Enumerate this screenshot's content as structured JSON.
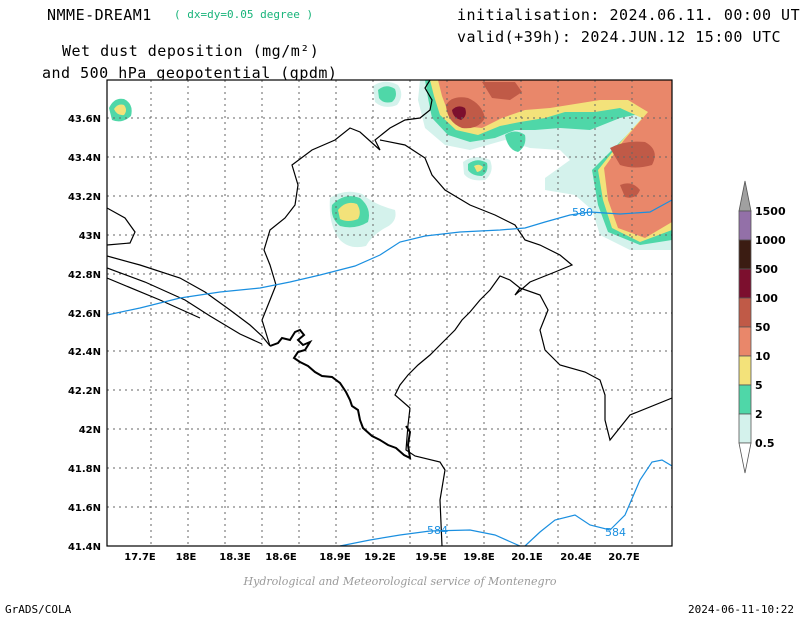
{
  "header": {
    "model": "NMME-DREAM1",
    "resolution": "( dx=dy=0.05 degree )",
    "title_line1": "Wet dust deposition (mg/m²)",
    "title_line2": "and 500 hPa geopotential (gpdm)",
    "init": "initialisation: 2024.06.11. 00:00 UTC",
    "valid": "valid(+39h): 2024.JUN.12 15:00 UTC"
  },
  "map": {
    "lat_labels": [
      "43.6N",
      "43.4N",
      "43.2N",
      "43N",
      "42.8N",
      "42.6N",
      "42.4N",
      "42.2N",
      "42N",
      "41.8N",
      "41.6N",
      "41.4N"
    ],
    "lon_labels": [
      "17.7E",
      "18E",
      "18.3E",
      "18.6E",
      "18.9E",
      "19.2E",
      "19.5E",
      "19.8E",
      "20.1E",
      "20.4E",
      "20.7E"
    ],
    "contours": [
      {
        "value": "580"
      },
      {
        "value": "584"
      },
      {
        "value": "584"
      }
    ],
    "colors": {
      "c0_5": "#d4f2ec",
      "c2": "#4fd7a8",
      "c5": "#f3e27a",
      "c10": "#e9876a",
      "c50": "#c05a47",
      "c100": "#7c0f2e",
      "c500": "#3b1c12",
      "c1000": "#9370a8",
      "c1500": "#a0a0a0",
      "geopotential": "#1a8fe0",
      "border": "#000000",
      "grid": "#666666"
    }
  },
  "colorbar": {
    "labels": [
      "1500",
      "1000",
      "500",
      "100",
      "50",
      "10",
      "5",
      "2",
      "0.5"
    ]
  },
  "footer": {
    "credit": "Hydrological and Meteorological service of Montenegro",
    "left": "GrADS/COLA",
    "right": "2024-06-11-10:22"
  }
}
